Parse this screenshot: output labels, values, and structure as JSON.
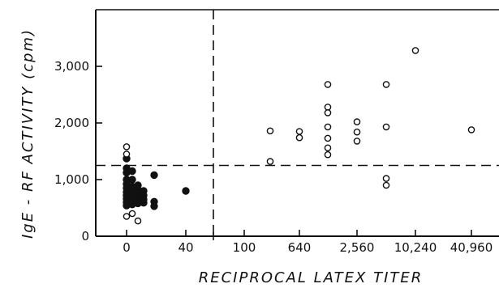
{
  "chart_data": {
    "type": "scatter",
    "xlabel": "RECIPROCAL LATEX TITER",
    "ylabel": "IgE - RF ACTIVITY (cpm)",
    "x_ticks": [
      "0",
      "40",
      "100",
      "640",
      "2,560",
      "10,240",
      "40,960"
    ],
    "y_ticks": [
      "0",
      "1,000",
      "2,000",
      "3,000"
    ],
    "ylim": [
      0,
      4000
    ],
    "threshold_y": 1250,
    "grid": false,
    "series": [
      {
        "marker": "filled",
        "points": [
          {
            "x": "0",
            "y": 1370
          },
          {
            "x": "0",
            "y": 1200
          },
          {
            "x": "0",
            "y": 1120
          },
          {
            "x": "0",
            "y": 1000
          },
          {
            "x": "0",
            "y": 920
          },
          {
            "x": "0",
            "y": 850
          },
          {
            "x": "0",
            "y": 780
          },
          {
            "x": "0",
            "y": 720
          },
          {
            "x": "0",
            "y": 660
          },
          {
            "x": "0",
            "y": 600
          },
          {
            "x": "0",
            "y": 540
          },
          {
            "x": "5",
            "y": 1150
          },
          {
            "x": "5",
            "y": 1000
          },
          {
            "x": "5",
            "y": 880
          },
          {
            "x": "5",
            "y": 800
          },
          {
            "x": "5",
            "y": 740
          },
          {
            "x": "5",
            "y": 680
          },
          {
            "x": "5",
            "y": 620
          },
          {
            "x": "5",
            "y": 560
          },
          {
            "x": "10",
            "y": 900
          },
          {
            "x": "10",
            "y": 820
          },
          {
            "x": "10",
            "y": 760
          },
          {
            "x": "10",
            "y": 700
          },
          {
            "x": "10",
            "y": 640
          },
          {
            "x": "10",
            "y": 580
          },
          {
            "x": "15",
            "y": 800
          },
          {
            "x": "15",
            "y": 720
          },
          {
            "x": "15",
            "y": 650
          },
          {
            "x": "15",
            "y": 590
          },
          {
            "x": "20",
            "y": 1080
          },
          {
            "x": "20",
            "y": 610
          },
          {
            "x": "20",
            "y": 530
          },
          {
            "x": "40",
            "y": 800
          }
        ]
      },
      {
        "marker": "open",
        "points": [
          {
            "x": "0",
            "y": 1580
          },
          {
            "x": "0",
            "y": 1450
          },
          {
            "x": "0",
            "y": 350
          },
          {
            "x": "5",
            "y": 400
          },
          {
            "x": "10",
            "y": 270
          },
          {
            "x": "320",
            "y": 1860
          },
          {
            "x": "320",
            "y": 1320
          },
          {
            "x": "640",
            "y": 1850
          },
          {
            "x": "640",
            "y": 1740
          },
          {
            "x": "1280",
            "y": 2680
          },
          {
            "x": "1280",
            "y": 2280
          },
          {
            "x": "1280",
            "y": 2180
          },
          {
            "x": "1280",
            "y": 1930
          },
          {
            "x": "1280",
            "y": 1730
          },
          {
            "x": "1280",
            "y": 1560
          },
          {
            "x": "1280",
            "y": 1440
          },
          {
            "x": "2560",
            "y": 2020
          },
          {
            "x": "2560",
            "y": 1840
          },
          {
            "x": "2560",
            "y": 1680
          },
          {
            "x": "5120",
            "y": 2680
          },
          {
            "x": "5120",
            "y": 1930
          },
          {
            "x": "5120",
            "y": 1020
          },
          {
            "x": "5120",
            "y": 900
          },
          {
            "x": "10240",
            "y": 3280
          },
          {
            "x": "40960",
            "y": 1880
          }
        ]
      }
    ]
  }
}
